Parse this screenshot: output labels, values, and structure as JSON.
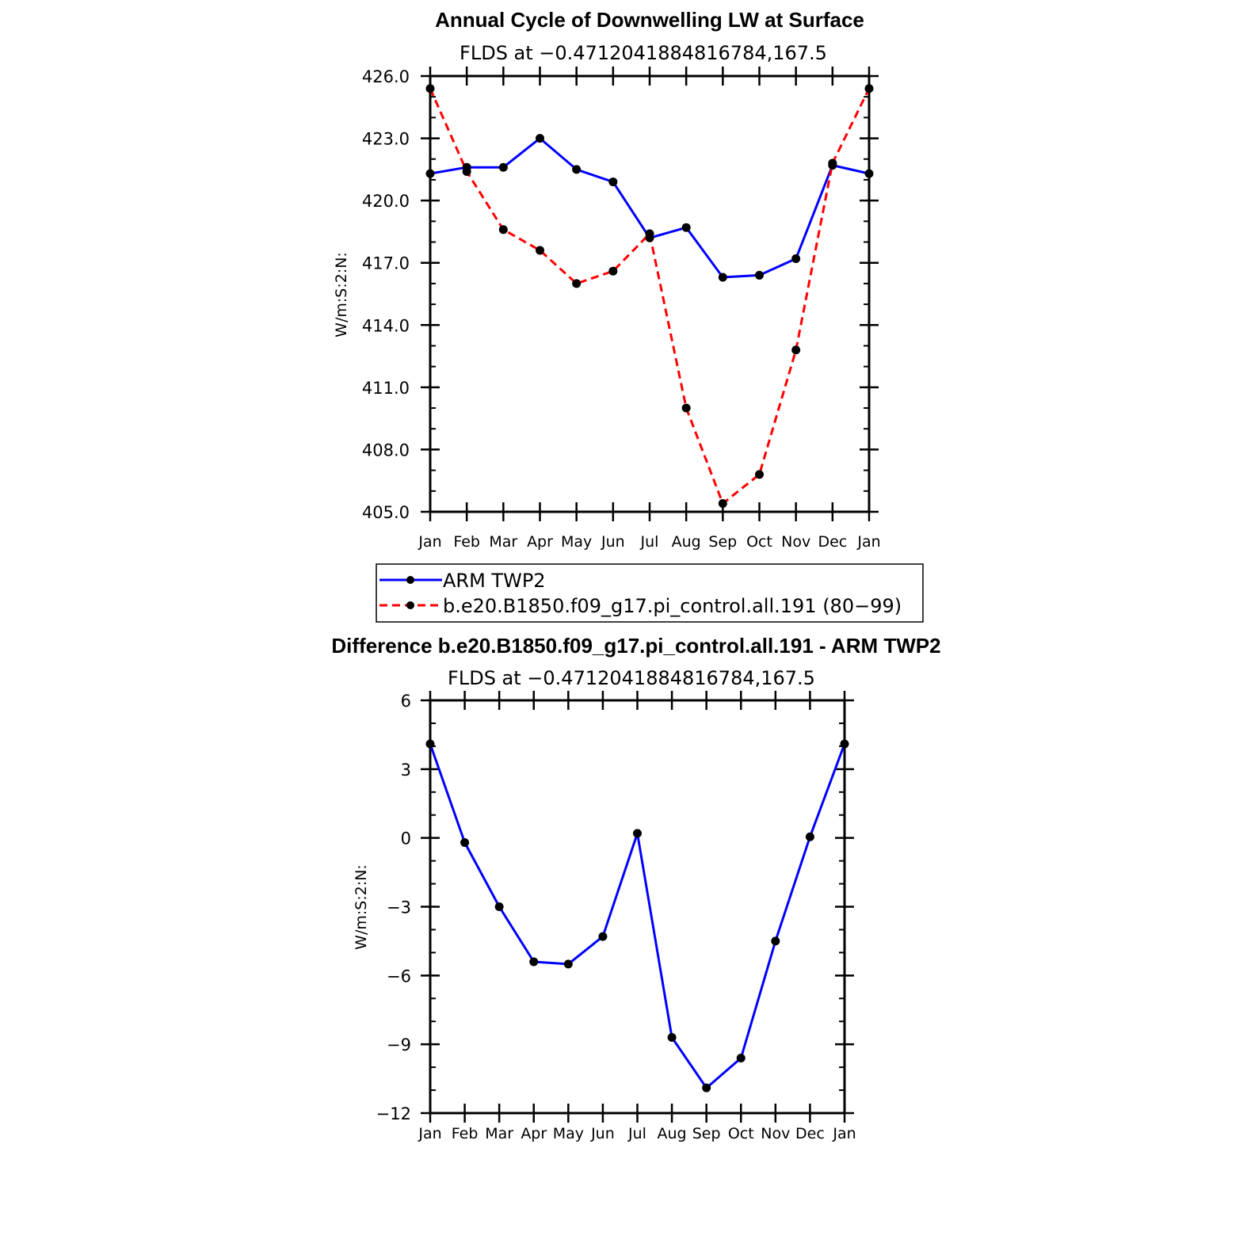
{
  "chart_data": [
    {
      "type": "line",
      "title": "Annual Cycle of Downwelling LW at Surface",
      "subtitle": "FLDS at −0.4712041884816784,167.5",
      "ylabel": "W/m:S:2:N:",
      "xlabel": "",
      "categories": [
        "Jan",
        "Feb",
        "Mar",
        "Apr",
        "May",
        "Jun",
        "Jul",
        "Aug",
        "Sep",
        "Oct",
        "Nov",
        "Dec",
        "Jan"
      ],
      "ylim": [
        405.0,
        426.0
      ],
      "yticks": [
        "405.0",
        "408.0",
        "411.0",
        "414.0",
        "417.0",
        "420.0",
        "423.0",
        "426.0"
      ],
      "series": [
        {
          "name": "ARM TWP2",
          "color": "#0000ff",
          "dash": "solid",
          "values": [
            421.3,
            421.6,
            421.6,
            423.0,
            421.5,
            420.9,
            418.2,
            418.7,
            416.3,
            416.4,
            417.2,
            421.7,
            421.3
          ]
        },
        {
          "name": "b.e20.B1850.f09_g17.pi_control.all.191 (80−99)",
          "color": "#ff0000",
          "dash": "dashed",
          "values": [
            425.4,
            421.4,
            418.6,
            417.6,
            416.0,
            416.6,
            418.4,
            410.0,
            405.4,
            406.8,
            412.8,
            421.8,
            425.4
          ]
        }
      ],
      "legend": "below"
    },
    {
      "type": "line",
      "title": "Difference b.e20.B1850.f09_g17.pi_control.all.191 - ARM TWP2",
      "subtitle": "FLDS at −0.4712041884816784,167.5",
      "ylabel": "W/m:S:2:N:",
      "xlabel": "",
      "categories": [
        "Jan",
        "Feb",
        "Mar",
        "Apr",
        "May",
        "Jun",
        "Jul",
        "Aug",
        "Sep",
        "Oct",
        "Nov",
        "Dec",
        "Jan"
      ],
      "ylim": [
        -12,
        6
      ],
      "yticks": [
        "−12",
        "−9",
        "−6",
        "−3",
        "0",
        "3",
        "6"
      ],
      "series": [
        {
          "name": "",
          "color": "#0000ff",
          "dash": "solid",
          "values": [
            4.1,
            -0.2,
            -3.0,
            -5.4,
            -5.5,
            -4.3,
            0.2,
            -8.7,
            -10.9,
            -9.6,
            -4.5,
            0.05,
            4.1
          ]
        }
      ]
    }
  ]
}
